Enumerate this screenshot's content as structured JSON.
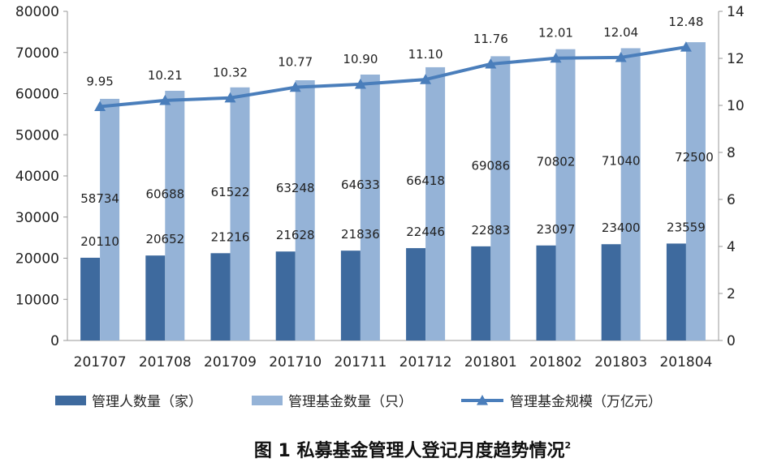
{
  "chart_data": {
    "type": "bar",
    "categories": [
      "201707",
      "201708",
      "201709",
      "201710",
      "201711",
      "201712",
      "201801",
      "201802",
      "201803",
      "201804"
    ],
    "series": [
      {
        "name": "管理人数量（家）",
        "type": "bar",
        "axis": "left",
        "color": "#3e6a9e",
        "values": [
          20110,
          20652,
          21216,
          21628,
          21836,
          22446,
          22883,
          23097,
          23400,
          23559
        ]
      },
      {
        "name": "管理基金数量（只）",
        "type": "bar",
        "axis": "left",
        "color": "#95b3d7",
        "values": [
          58734,
          60688,
          61522,
          63248,
          64633,
          66418,
          69086,
          70802,
          71040,
          72500
        ]
      },
      {
        "name": "管理基金规模（万亿元）",
        "type": "line",
        "axis": "right",
        "color": "#4a7ebb",
        "values": [
          9.95,
          10.21,
          10.32,
          10.77,
          10.9,
          11.1,
          11.76,
          12.01,
          12.04,
          12.48
        ]
      }
    ],
    "data_labels": {
      "bar1": [
        "20110",
        "20652",
        "21216",
        "21628",
        "21836",
        "22446",
        "22883",
        "23097",
        "23400",
        "23559"
      ],
      "bar2": [
        "58734",
        "60688",
        "61522",
        "63248",
        "64633",
        "66418",
        "69086",
        "70802",
        "71040",
        "72500"
      ],
      "line": [
        "9.95",
        "10.21",
        "10.32",
        "10.77",
        "10.90",
        "11.10",
        "11.76",
        "12.01",
        "12.04",
        "12.48"
      ]
    },
    "ylim_left": [
      0,
      80000
    ],
    "yticks_left": [
      "0",
      "10000",
      "20000",
      "30000",
      "40000",
      "50000",
      "60000",
      "70000",
      "80000"
    ],
    "ylim_right": [
      0,
      14
    ],
    "yticks_right": [
      "0",
      "2",
      "4",
      "6",
      "8",
      "10",
      "12",
      "14"
    ],
    "grid": false,
    "legend_position": "bottom"
  },
  "caption": {
    "text": "图 1  私募基金管理人登记月度趋势情况",
    "superscript": "2"
  }
}
